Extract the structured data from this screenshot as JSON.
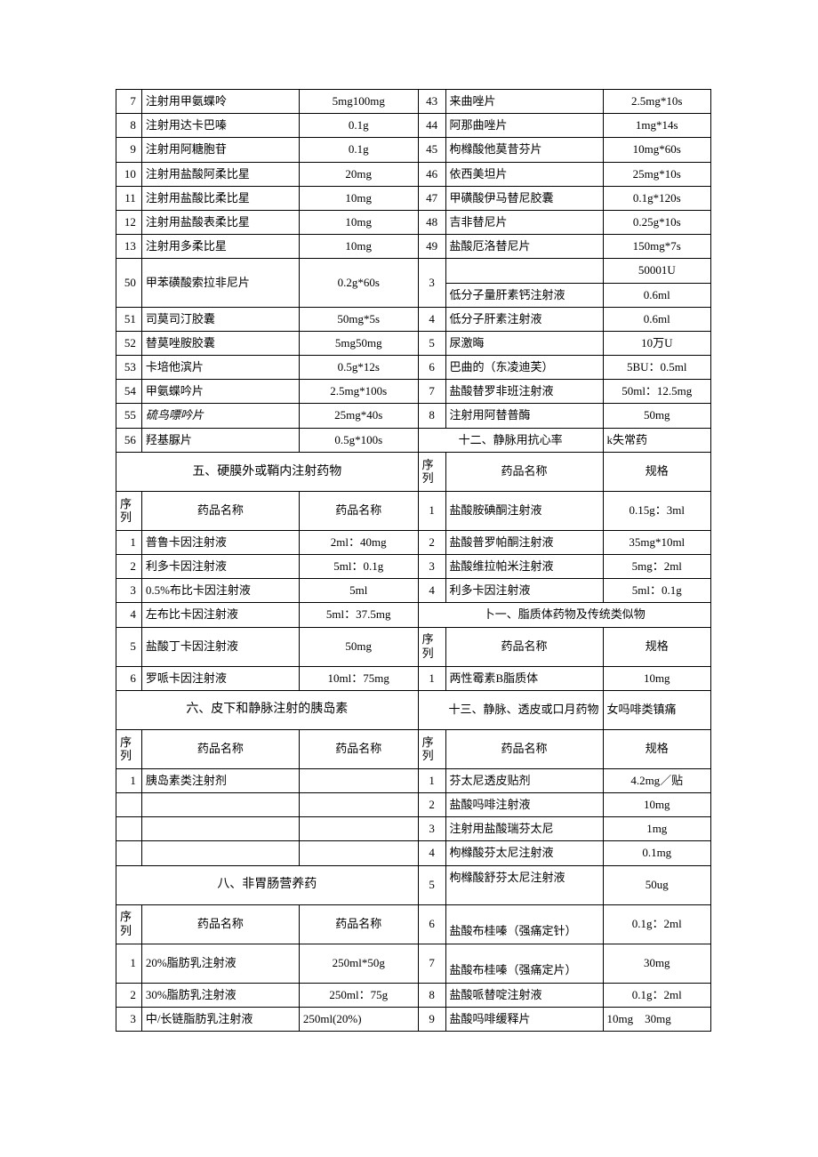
{
  "upper_rows": [
    {
      "ls": "7",
      "ln": "注射用甲氨蝶呤",
      "lsp": "5mg100mg",
      "rs": "43",
      "rn": "来曲唑片",
      "rsp": "2.5mg*10s"
    },
    {
      "ls": "8",
      "ln": "注射用达卡巴嗪",
      "lsp": "0.1g",
      "rs": "44",
      "rn": "阿那曲唑片",
      "rsp": "1mg*14s"
    },
    {
      "ls": "9",
      "ln": "注射用阿糖胞苷",
      "lsp": "0.1g",
      "rs": "45",
      "rn": "枸橼酸他莫昔芬片",
      "rsp": "10mg*60s"
    },
    {
      "ls": "10",
      "ln": "注射用盐酸阿柔比星",
      "lsp": "20mg",
      "rs": "46",
      "rn": "依西美坦片",
      "rsp": "25mg*10s"
    },
    {
      "ls": "11",
      "ln": "注射用盐酸比柔比星",
      "lsp": "10mg",
      "rs": "47",
      "rn": "甲磺酸伊马替尼胶囊",
      "rsp": "0.1g*120s"
    },
    {
      "ls": "12",
      "ln": "注射用盐酸表柔比星",
      "lsp": "10mg",
      "rs": "48",
      "rn": "吉非替尼片",
      "rsp": "0.25g*10s"
    },
    {
      "ls": "13",
      "ln": "注射用多柔比星",
      "lsp": "10mg",
      "rs": "49",
      "rn": "盐酸厄洛替尼片",
      "rsp": "150mg*7s"
    }
  ],
  "row_split": {
    "ls": "50",
    "ln": "甲苯磺酸索拉非尼片",
    "lsp": "0.2g*60s",
    "rs": "3",
    "rn_top": "",
    "rn_bot": "低分子量肝素钙注射液",
    "rsp_top": "50001U",
    "rsp_bot": "0.6ml"
  },
  "mid_rows": [
    {
      "ls": "51",
      "ln": "司莫司汀胶囊",
      "lsp": "50mg*5s",
      "rs": "4",
      "rn": "低分子肝素注射液",
      "rsp": "0.6ml"
    },
    {
      "ls": "52",
      "ln": "替莫唑胺胶囊",
      "lsp": "5mg50mg",
      "rs": "5",
      "rn": "尿激晦",
      "rsp": "10万U"
    },
    {
      "ls": "53",
      "ln": "卡培他滨片",
      "lsp": "0.5g*12s",
      "rs": "6",
      "rn": "巴曲的（东凌迪芙）",
      "rsp": "5BU：0.5ml"
    },
    {
      "ls": "54",
      "ln": "甲氨蝶吟片",
      "lsp": "2.5mg*100s",
      "rs": "7",
      "rn": "盐酸替罗非班注射液",
      "rsp": "50ml：12.5mg"
    },
    {
      "ls": "55",
      "ln_italic": "硫鸟嘌吟片",
      "lsp": "25mg*40s",
      "rs": "8",
      "rn": "注射用阿替普酶",
      "rsp": "50mg"
    }
  ],
  "row56": {
    "ls": "56",
    "ln": "羟基脲片",
    "lsp": "0.5g*100s",
    "r_title_l": "十二、静脉用抗心率",
    "r_title_r": "k失常药"
  },
  "section5": {
    "title": "五、硬膜外或鞘内注射药物",
    "hdr_seq": "序列",
    "hdr_name_r": "药品名称",
    "hdr_spec_r": "规格"
  },
  "section5_hdr": {
    "seq": "序列",
    "name": "药品名称",
    "spec": "药品名称"
  },
  "s5_r1": {
    "rs": "1",
    "rn": "盐酸胺碘酮注射液",
    "rsp": "0.15g：3ml"
  },
  "s5_rows": [
    {
      "ls": "1",
      "ln": "普鲁卡因注射液",
      "lsp": "2ml：40mg",
      "rs": "2",
      "rn": "盐酸普罗帕酮注射液",
      "rsp": "35mg*10ml"
    },
    {
      "ls": "2",
      "ln": "利多卡因注射液",
      "lsp": "5ml：0.1g",
      "rs": "3",
      "rn": "盐酸维拉帕米注射液",
      "rsp": "5mg：2ml"
    },
    {
      "ls": "3",
      "ln": "0.5%布比卡因注射液",
      "lsp": "5ml",
      "rs": "4",
      "rn": "利多卡因注射液",
      "rsp": "5ml：0.1g"
    }
  ],
  "s5_r4": {
    "ls": "4",
    "ln": "左布比卡因注射液",
    "lsp": "5ml：37.5mg",
    "r_title": "卜一、脂质体药物及传统类似物"
  },
  "s5_r5": {
    "ls": "5",
    "ln": "盐酸丁卡因注射液",
    "lsp": "50mg",
    "rs": "序列",
    "rn": "药品名称",
    "rsp": "规格"
  },
  "s5_r6": {
    "ls": "6",
    "ln": "罗哌卡因注射液",
    "lsp": "10ml：75mg",
    "rs": "1",
    "rn": "两性霉素B脂质体",
    "rsp": "10mg"
  },
  "section6": {
    "title": "六、皮下和静脉注射的胰岛素",
    "r_title_l": "十三、静脉、透皮或口月药物",
    "r_title_r": "女吗啡类镇痛"
  },
  "s6_hdr": {
    "seq_l": "序列",
    "name_l": "药品名称",
    "spec_l": "药品名称",
    "seq_r": "序列",
    "name_r": "药品名称",
    "spec_r": "规格"
  },
  "s6_rows": [
    {
      "ls": "1",
      "ln": "胰岛素类注射剂",
      "lsp": "",
      "rs": "1",
      "rn": "芬太尼透皮贴剂",
      "rsp": "4.2mg／贴"
    },
    {
      "ls": "",
      "ln": "",
      "lsp": "",
      "rs": "2",
      "rn": "盐酸吗啡注射液",
      "rsp": "10mg"
    },
    {
      "ls": "",
      "ln": "",
      "lsp": "",
      "rs": "3",
      "rn": "注射用盐酸瑞芬太尼",
      "rsp": "1mg"
    },
    {
      "ls": "",
      "ln": "",
      "lsp": "",
      "rs": "4",
      "rn": "枸橼酸芬太尼注射液",
      "rsp": "0.1mg"
    }
  ],
  "section8": {
    "title": "八、非胃肠营养药",
    "rs": "5",
    "rn": "枸橼酸舒芬太尼注射液",
    "rsp": "50ug"
  },
  "s8_hdr": {
    "seq": "序列",
    "name": "药品名称",
    "spec": "药品名称",
    "rs": "6",
    "rn": "盐酸布桂嗪（强痛定针）",
    "rsp": "0.1g：2ml"
  },
  "s8_rows": [
    {
      "ls": "1",
      "ln": "20%脂肪乳注射液",
      "lsp": "250ml*50g",
      "rs": "7",
      "rn": "盐酸布桂嗪（强痛定片）",
      "rsp": "30mg"
    },
    {
      "ls": "2",
      "ln": "30%脂肪乳注射液",
      "lsp": "250ml：75g",
      "rs": "8",
      "rn": "盐酸哌替啶注射液",
      "rsp": "0.1g：2ml"
    },
    {
      "ls": "3",
      "ln": "中/长链脂肪乳注射液",
      "lsp": "250ml(20%)",
      "rs": "9",
      "rn": "盐酸吗啡缓释片",
      "rsp": "10mg    30mg"
    }
  ]
}
